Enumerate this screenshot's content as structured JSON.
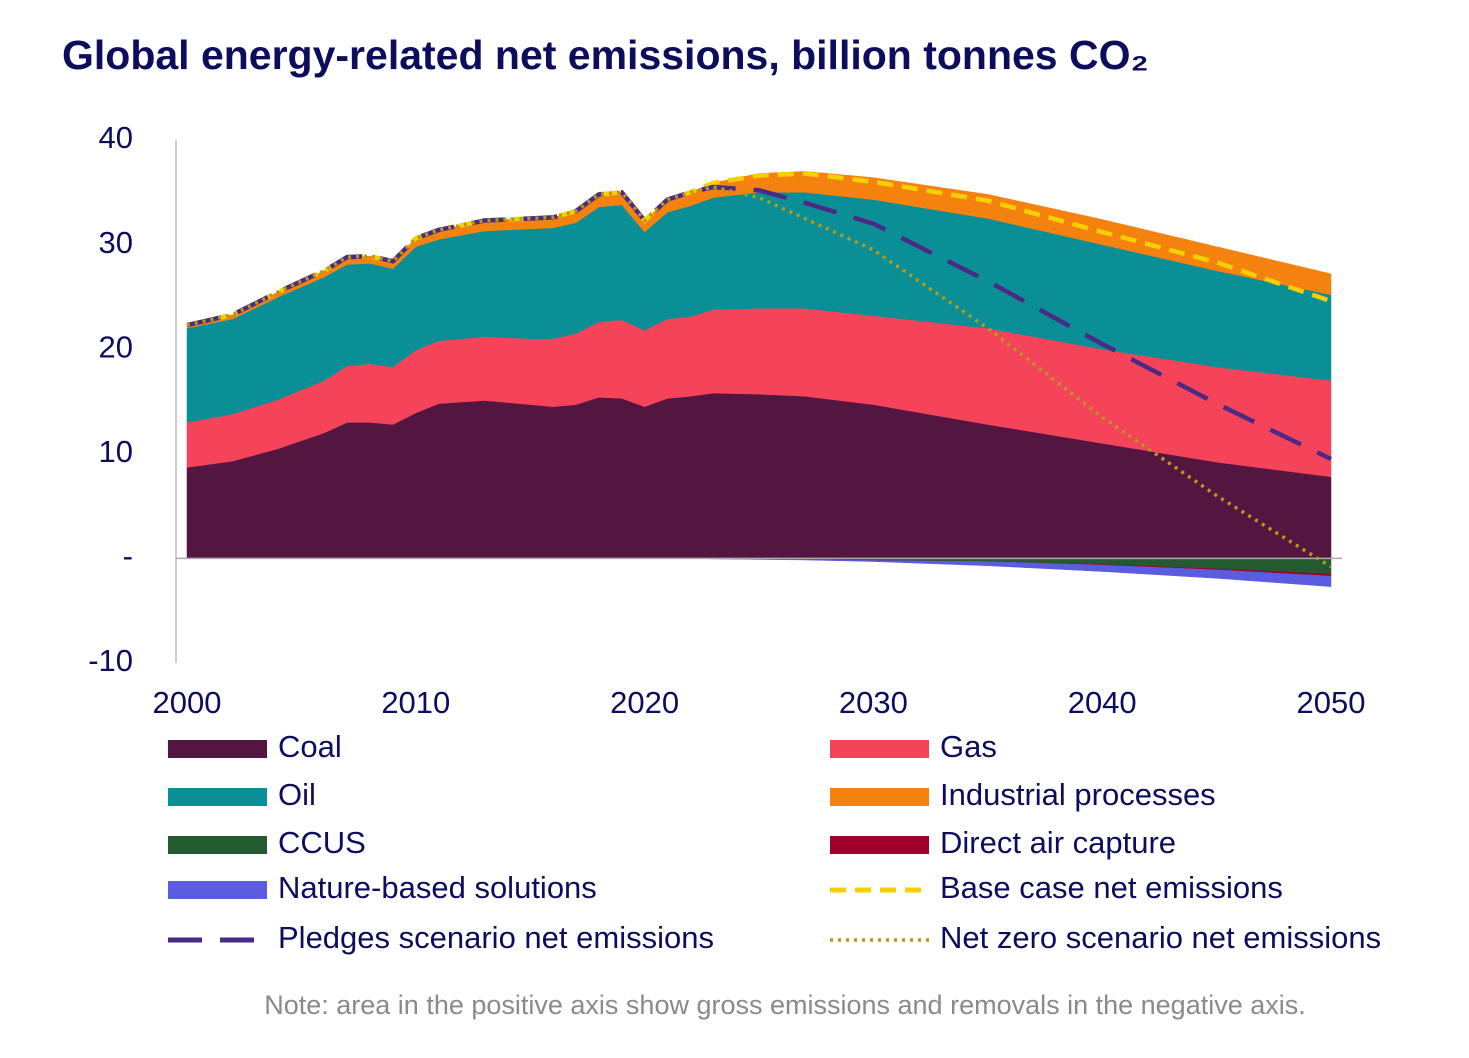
{
  "chart_data": {
    "type": "area",
    "title": "Global energy-related net emissions, billion tonnes CO₂",
    "note": "Note: area in the positive axis show gross emissions and removals in the negative axis.",
    "x": [
      2000,
      2002,
      2004,
      2006,
      2007,
      2008,
      2009,
      2010,
      2011,
      2013,
      2015,
      2016,
      2017,
      2018,
      2019,
      2020,
      2021,
      2022,
      2023,
      2025,
      2027,
      2030,
      2035,
      2040,
      2045,
      2050
    ],
    "xlim": [
      2000,
      2050
    ],
    "xticks": [
      2000,
      2010,
      2020,
      2030,
      2040,
      2050
    ],
    "ylim": [
      -10,
      40
    ],
    "yticks": [
      40,
      30,
      20,
      10,
      {
        "value": 0,
        "label": "-"
      },
      -10
    ],
    "series": [
      {
        "name": "Coal",
        "type": "area",
        "color": "#521640",
        "values": [
          8.7,
          9.3,
          10.5,
          12,
          13,
          13,
          12.8,
          13.9,
          14.8,
          15.1,
          14.7,
          14.5,
          14.7,
          15.4,
          15.3,
          14.5,
          15.3,
          15.5,
          15.8,
          15.7,
          15.5,
          14.7,
          12.8,
          11.0,
          9.2,
          7.8
        ]
      },
      {
        "name": "Gas",
        "type": "area",
        "color": "#f5435a",
        "values": [
          4.3,
          4.5,
          4.7,
          5.0,
          5.4,
          5.6,
          5.5,
          6.0,
          6.0,
          6.1,
          6.3,
          6.5,
          6.8,
          7.2,
          7.5,
          7.3,
          7.6,
          7.6,
          8.0,
          8.2,
          8.4,
          8.5,
          9.2,
          9.0,
          9.1,
          9.2
        ]
      },
      {
        "name": "Oil",
        "type": "area",
        "color": "#0b8f97",
        "values": [
          9.0,
          9.1,
          9.8,
          9.9,
          9.7,
          9.6,
          9.4,
          9.9,
          9.7,
          10.1,
          10.5,
          10.6,
          10.6,
          11.0,
          11.0,
          9.4,
          10.2,
          10.6,
          10.7,
          11.1,
          11.1,
          11.1,
          10.5,
          10.0,
          9.2,
          8.2
        ]
      },
      {
        "name": "Industrial processes",
        "type": "area",
        "color": "#f5820f",
        "values": [
          0.3,
          0.4,
          0.5,
          0.6,
          0.7,
          0.7,
          0.7,
          0.8,
          0.9,
          1.0,
          1.0,
          1.0,
          1.1,
          1.2,
          1.2,
          1.1,
          1.2,
          1.3,
          1.4,
          1.8,
          2.0,
          2.1,
          2.3,
          2.4,
          2.3,
          2.0
        ]
      },
      {
        "name": "CCUS",
        "type": "area",
        "color": "#235a2f",
        "values": [
          0,
          0,
          0,
          0,
          0,
          0,
          0,
          0,
          0,
          0,
          0,
          0,
          0,
          0,
          0,
          0,
          0,
          0,
          0,
          -0.05,
          -0.1,
          -0.2,
          -0.3,
          -0.6,
          -1.0,
          -1.5
        ]
      },
      {
        "name": "Direct air capture",
        "type": "area",
        "color": "#a0002a",
        "values": [
          0,
          0,
          0,
          0,
          0,
          0,
          0,
          0,
          0,
          0,
          0,
          0,
          0,
          0,
          0,
          0,
          0,
          0,
          0,
          0,
          0,
          0,
          0,
          -0.05,
          -0.1,
          -0.2
        ]
      },
      {
        "name": "Nature-based solutions",
        "type": "area",
        "color": "#5c5ce0",
        "values": [
          0,
          0,
          0,
          0,
          0,
          0,
          0,
          0,
          0,
          0,
          0,
          0,
          0,
          0,
          0,
          0,
          0,
          0,
          -0.05,
          -0.05,
          -0.05,
          -0.1,
          -0.4,
          -0.6,
          -0.8,
          -1.0
        ]
      },
      {
        "name": "Base case net emissions",
        "type": "line",
        "dash": "dashed",
        "color": "#f5d000",
        "values": [
          22.3,
          23.3,
          25.5,
          27.5,
          28.8,
          28.9,
          28.4,
          30.6,
          31.4,
          32.3,
          32.5,
          32.6,
          33.2,
          34.8,
          35.0,
          32.3,
          34.3,
          35.0,
          35.9,
          36.6,
          36.8,
          36.0,
          34.2,
          31.2,
          28.3,
          24.6
        ]
      },
      {
        "name": "Pledges scenario net emissions",
        "type": "line",
        "dash": "long-dashed",
        "color": "#4b2a85",
        "values": [
          22.3,
          23.3,
          25.5,
          27.5,
          28.8,
          28.9,
          28.4,
          30.6,
          31.4,
          32.3,
          32.5,
          32.6,
          33.2,
          34.8,
          35.0,
          32.3,
          34.3,
          35.0,
          35.5,
          35.2,
          34.0,
          32.0,
          26.5,
          20.5,
          14.8,
          9.5
        ]
      },
      {
        "name": "Net zero scenario net emissions",
        "type": "line",
        "dash": "dotted",
        "color": "#b59a17",
        "values": [
          22.3,
          23.3,
          25.5,
          27.5,
          28.8,
          28.9,
          28.4,
          30.6,
          31.4,
          32.3,
          32.5,
          32.6,
          33.2,
          34.8,
          35.0,
          32.3,
          34.3,
          35.0,
          35.5,
          34.5,
          32.5,
          29.5,
          22.0,
          13.5,
          6.0,
          -0.8
        ]
      }
    ]
  }
}
